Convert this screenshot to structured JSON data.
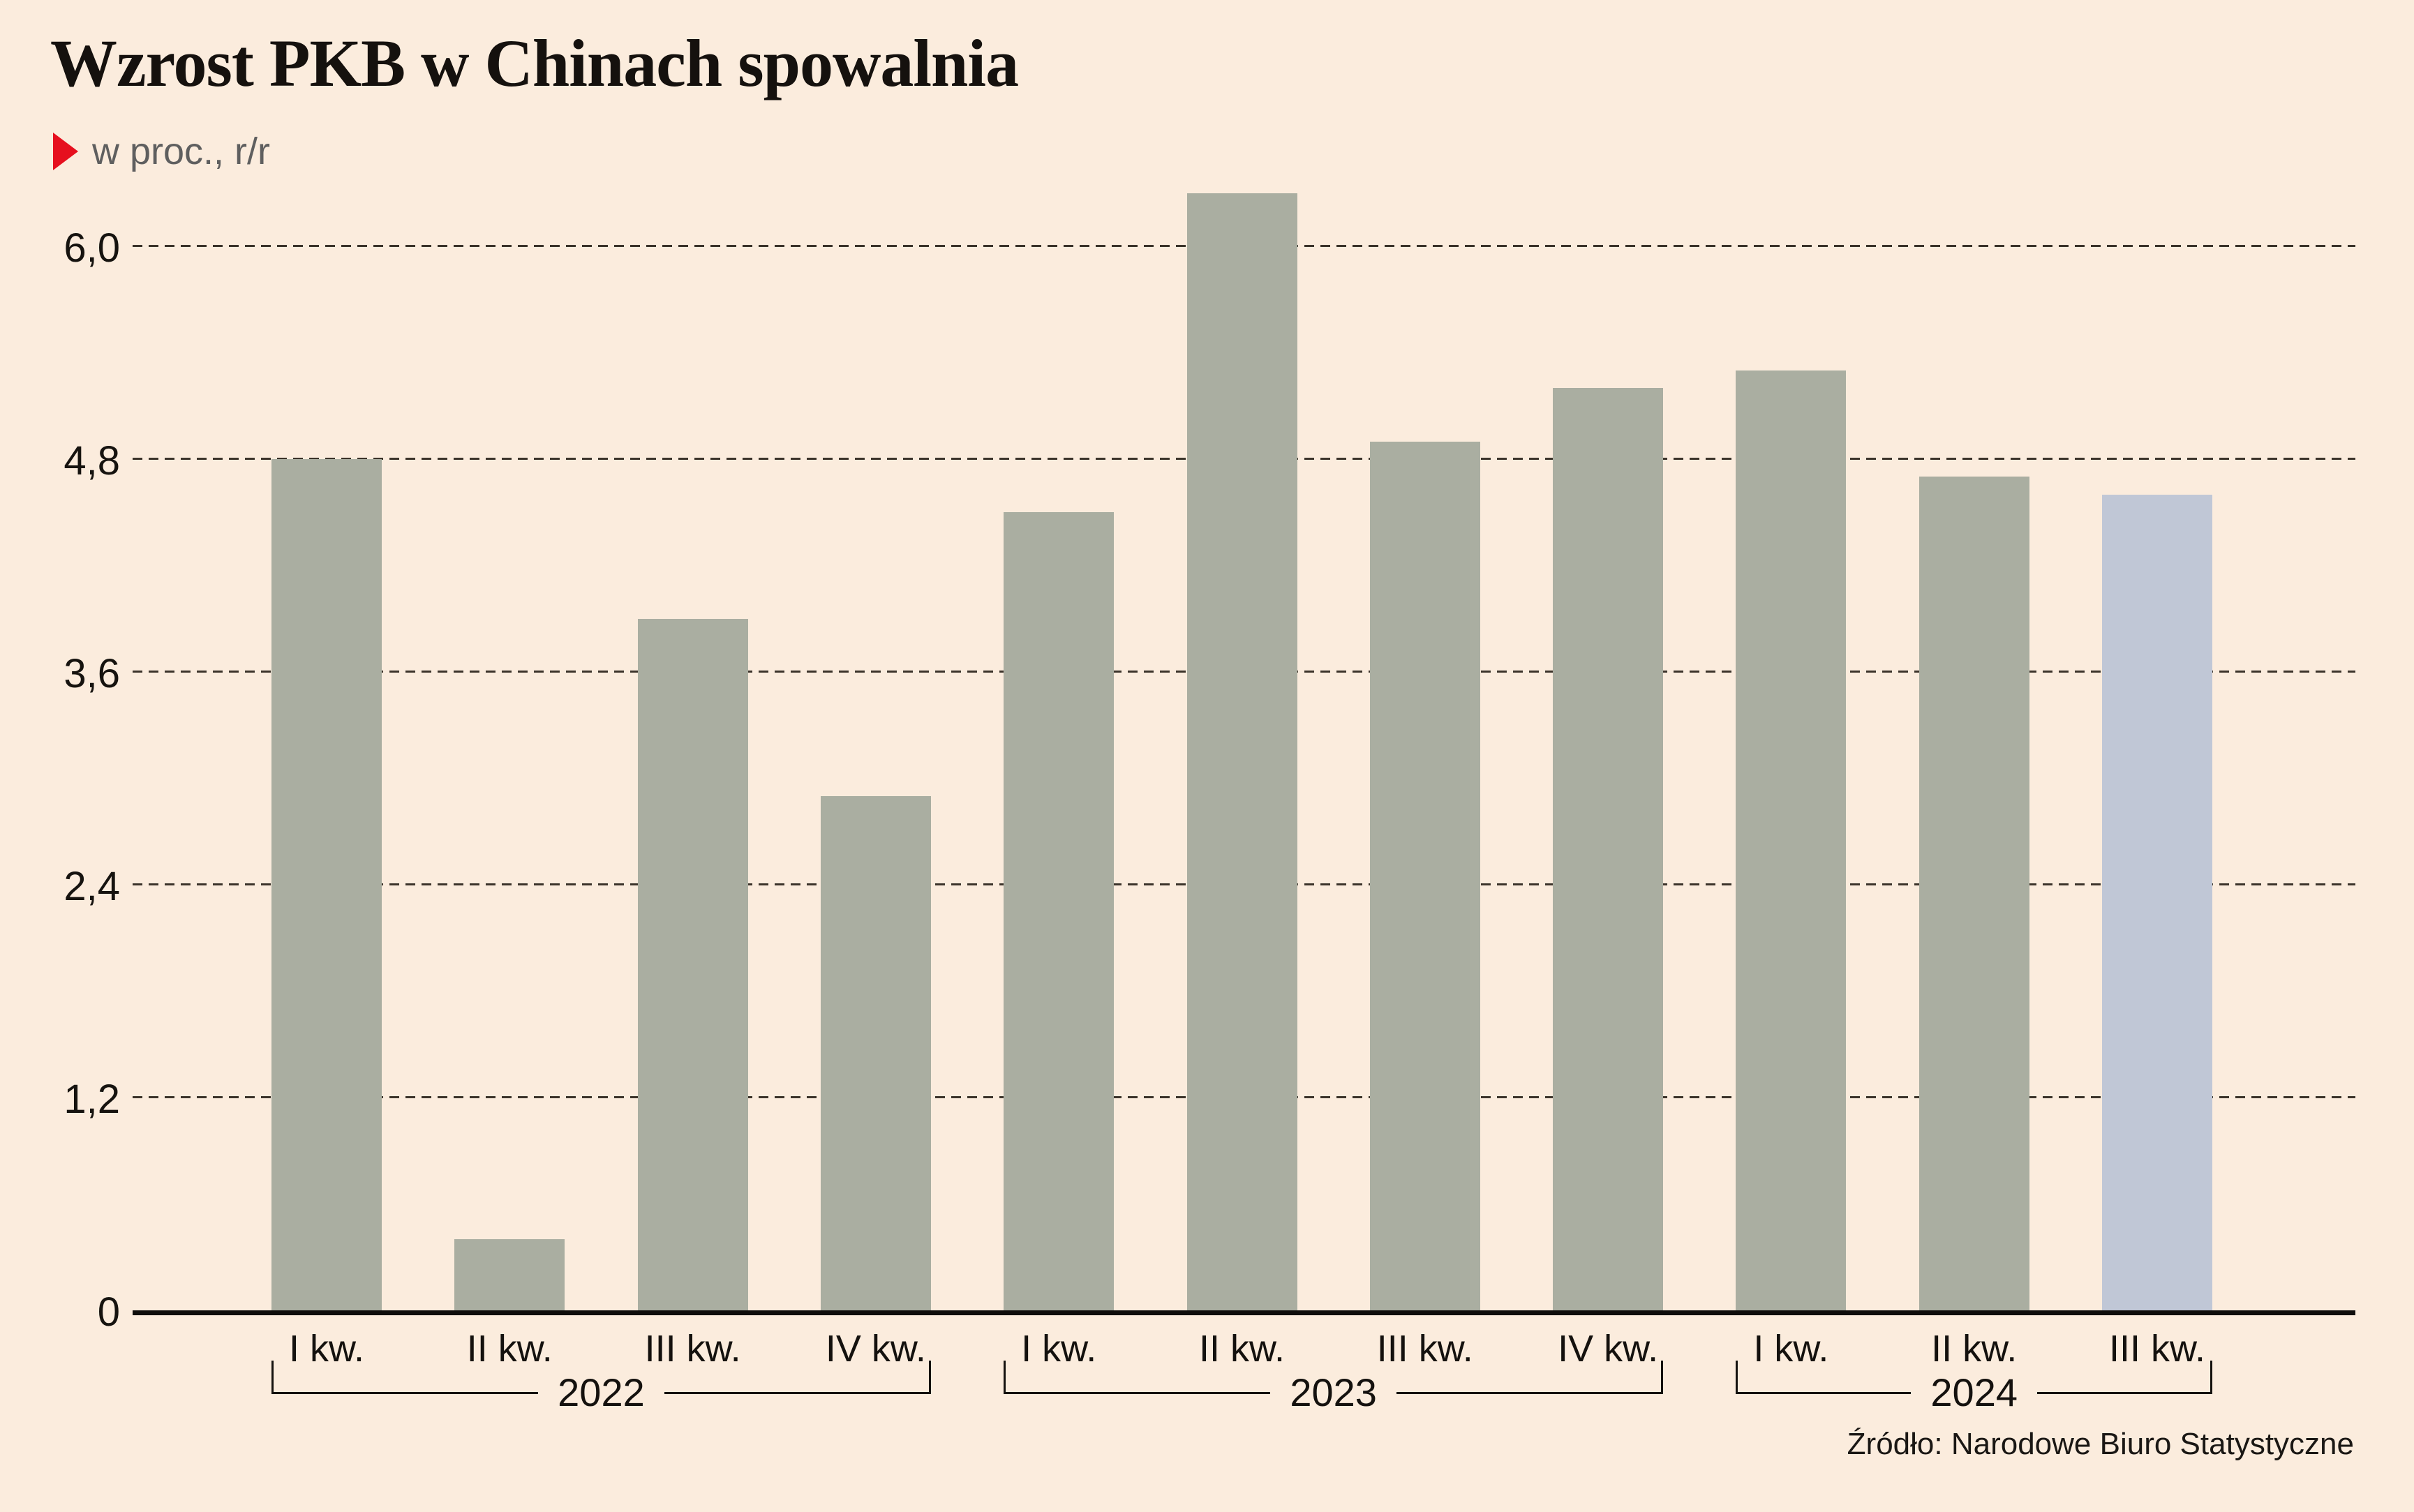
{
  "title": "Wzrost PKB w Chinach spowalnia",
  "subtitle": "w proc., r/r",
  "source": "Źródło: Narodowe Biuro Statystyczne",
  "colors": {
    "background": "#fbecdd",
    "bar": "#aaaea1",
    "bar_highlight": "#c0c7d6",
    "grid": "#3b332a",
    "axis": "#0f0d0b",
    "accent_red": "#e60f1e",
    "text": "#16130f",
    "subtitle_text": "#5f5f5f"
  },
  "chart_data": {
    "type": "bar",
    "title": "Wzrost PKB w Chinach spowalnia",
    "subtitle": "w proc., r/r",
    "ylabel": "proc., r/r",
    "categories": [
      "I kw.",
      "II kw.",
      "III kw.",
      "IV kw.",
      "I kw.",
      "II kw.",
      "III kw.",
      "IV kw.",
      "I kw.",
      "II kw.",
      "III kw."
    ],
    "values": [
      4.8,
      0.4,
      3.9,
      2.9,
      4.5,
      6.3,
      4.9,
      5.2,
      5.3,
      4.7,
      4.6
    ],
    "groups": [
      {
        "year": "2022",
        "count": 4
      },
      {
        "year": "2023",
        "count": 4
      },
      {
        "year": "2024",
        "count": 3
      }
    ],
    "highlight_index": 10,
    "y_ticks": [
      "6,0",
      "4,8",
      "3,6",
      "2,4",
      "1,2",
      "0"
    ],
    "y_tick_values": [
      6.0,
      4.8,
      3.6,
      2.4,
      1.2,
      0
    ],
    "ylim": [
      0,
      6.5
    ],
    "grid": "dashed horizontal",
    "legend": "none",
    "source": "Źródło: Narodowe Biuro Statystyczne"
  }
}
